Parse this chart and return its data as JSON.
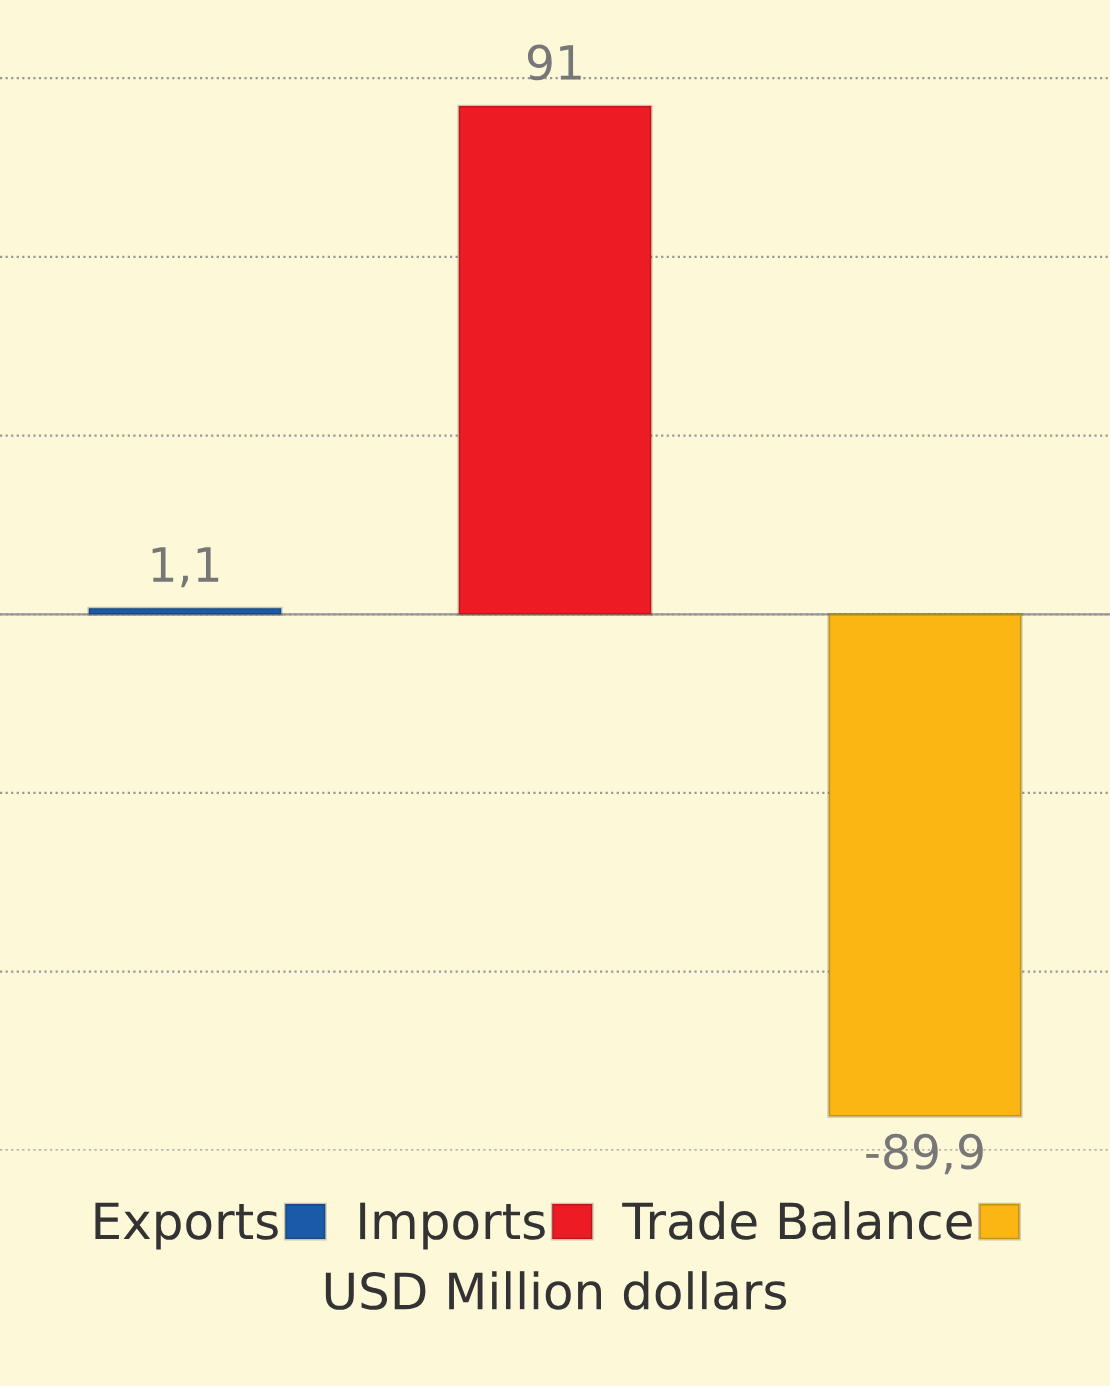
{
  "chart_data": {
    "type": "bar",
    "xlabel": "USD Million dollars",
    "categories": [
      null,
      null,
      null
    ],
    "series": [
      {
        "name": "Exports",
        "color": "#1b5aa6",
        "values": [
          1.1,
          null,
          null
        ],
        "value_labels": [
          "1,1",
          null,
          null
        ]
      },
      {
        "name": "Imports",
        "color": "#ed1c24",
        "values": [
          null,
          91,
          null
        ],
        "value_labels": [
          null,
          "91",
          null
        ]
      },
      {
        "name": "Trade Balance",
        "color": "#fbb614",
        "values": [
          null,
          null,
          -89.9
        ],
        "value_labels": [
          null,
          null,
          "-89,9"
        ]
      }
    ],
    "ylim": [
      -96,
      110
    ],
    "yticks": [
      {
        "value": -96,
        "label": null
      },
      {
        "value": -64,
        "label": null
      },
      {
        "value": -32,
        "label": null
      },
      {
        "value": 0,
        "label": null
      },
      {
        "value": 32,
        "label": null
      },
      {
        "value": 64,
        "label": null
      },
      {
        "value": 96,
        "label": null
      }
    ],
    "stacked": true,
    "grid": "y",
    "legend": "bottom"
  }
}
